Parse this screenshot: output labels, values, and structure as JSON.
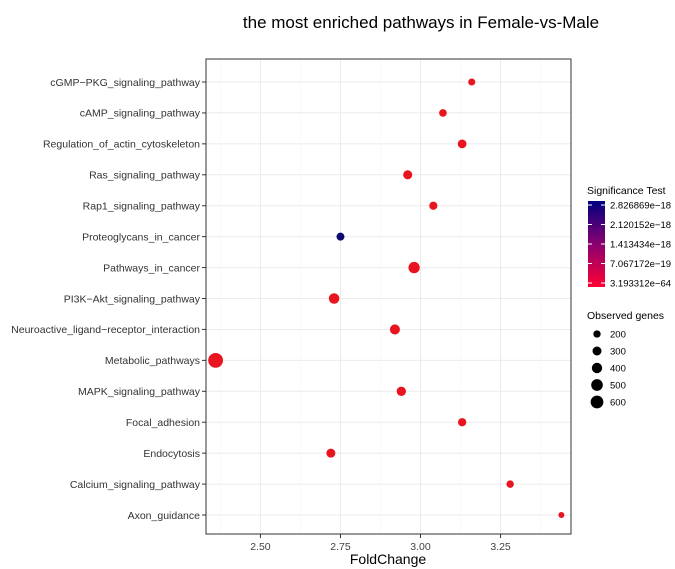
{
  "chart_data": {
    "type": "scatter",
    "title": "the most enriched pathways in Female-vs-Male",
    "xlabel": "FoldChange",
    "ylabel": "",
    "xlim": [
      2.33,
      3.47
    ],
    "x_ticks": [
      2.5,
      2.75,
      3.0,
      3.25
    ],
    "x_tick_labels": [
      "2.50",
      "2.75",
      "3.00",
      "3.25"
    ],
    "grid": true,
    "categories": [
      "cGMP−PKG_signaling_pathway",
      "cAMP_signaling_pathway",
      "Regulation_of_actin_cytoskeleton",
      "Ras_signaling_pathway",
      "Rap1_signaling_pathway",
      "Proteoglycans_in_cancer",
      "Pathways_in_cancer",
      "PI3K−Akt_signaling_pathway",
      "Neuroactive_ligand−receptor_interaction",
      "Metabolic_pathways",
      "MAPK_signaling_pathway",
      "Focal_adhesion",
      "Endocytosis",
      "Calcium_signaling_pathway",
      "Axon_guidance"
    ],
    "points": [
      {
        "pathway": "cGMP−PKG_signaling_pathway",
        "fold_change": 3.16,
        "observed_genes": 150,
        "significance": 3.2e-64
      },
      {
        "pathway": "cAMP_signaling_pathway",
        "fold_change": 3.07,
        "observed_genes": 175,
        "significance": 3.2e-64
      },
      {
        "pathway": "Regulation_of_actin_cytoskeleton",
        "fold_change": 3.13,
        "observed_genes": 230,
        "significance": 3.2e-64
      },
      {
        "pathway": "Ras_signaling_pathway",
        "fold_change": 2.96,
        "observed_genes": 245,
        "significance": 3.2e-64
      },
      {
        "pathway": "Rap1_signaling_pathway",
        "fold_change": 3.04,
        "observed_genes": 200,
        "significance": 3.2e-64
      },
      {
        "pathway": "Proteoglycans_in_cancer",
        "fold_change": 2.75,
        "observed_genes": 190,
        "significance": 2.8e-18
      },
      {
        "pathway": "Pathways_in_cancer",
        "fold_change": 2.98,
        "observed_genes": 380,
        "significance": 3.2e-64
      },
      {
        "pathway": "PI3K−Akt_signaling_pathway",
        "fold_change": 2.73,
        "observed_genes": 330,
        "significance": 3.2e-64
      },
      {
        "pathway": "Neuroactive_ligand−receptor_interaction",
        "fold_change": 2.92,
        "observed_genes": 300,
        "significance": 3.2e-64
      },
      {
        "pathway": "Metabolic_pathways",
        "fold_change": 2.36,
        "observed_genes": 650,
        "significance": 3.2e-64
      },
      {
        "pathway": "MAPK_signaling_pathway",
        "fold_change": 2.94,
        "observed_genes": 260,
        "significance": 3.2e-64
      },
      {
        "pathway": "Focal_adhesion",
        "fold_change": 3.13,
        "observed_genes": 205,
        "significance": 3.2e-64
      },
      {
        "pathway": "Endocytosis",
        "fold_change": 2.72,
        "observed_genes": 240,
        "significance": 3.2e-64
      },
      {
        "pathway": "Calcium_signaling_pathway",
        "fold_change": 3.28,
        "observed_genes": 165,
        "significance": 3.2e-64
      },
      {
        "pathway": "Axon_guidance",
        "fold_change": 3.44,
        "observed_genes": 105,
        "significance": 3.2e-64
      }
    ],
    "color_legend": {
      "title": "Significance Test",
      "labels": [
        "2.826869e−18",
        "2.120152e−18",
        "1.413434e−18",
        "7.067172e−19",
        "3.193312e−64"
      ],
      "colors": [
        "#000080",
        "#ff0033"
      ]
    },
    "size_legend": {
      "title": "Observed genes",
      "values": [
        200,
        300,
        400,
        500,
        600
      ],
      "labels": [
        "200",
        "300",
        "400",
        "500",
        "600"
      ]
    }
  },
  "colors": {
    "panel_border": "#333333",
    "point_high": "#e8141f",
    "point_low": "#0b0b70"
  }
}
